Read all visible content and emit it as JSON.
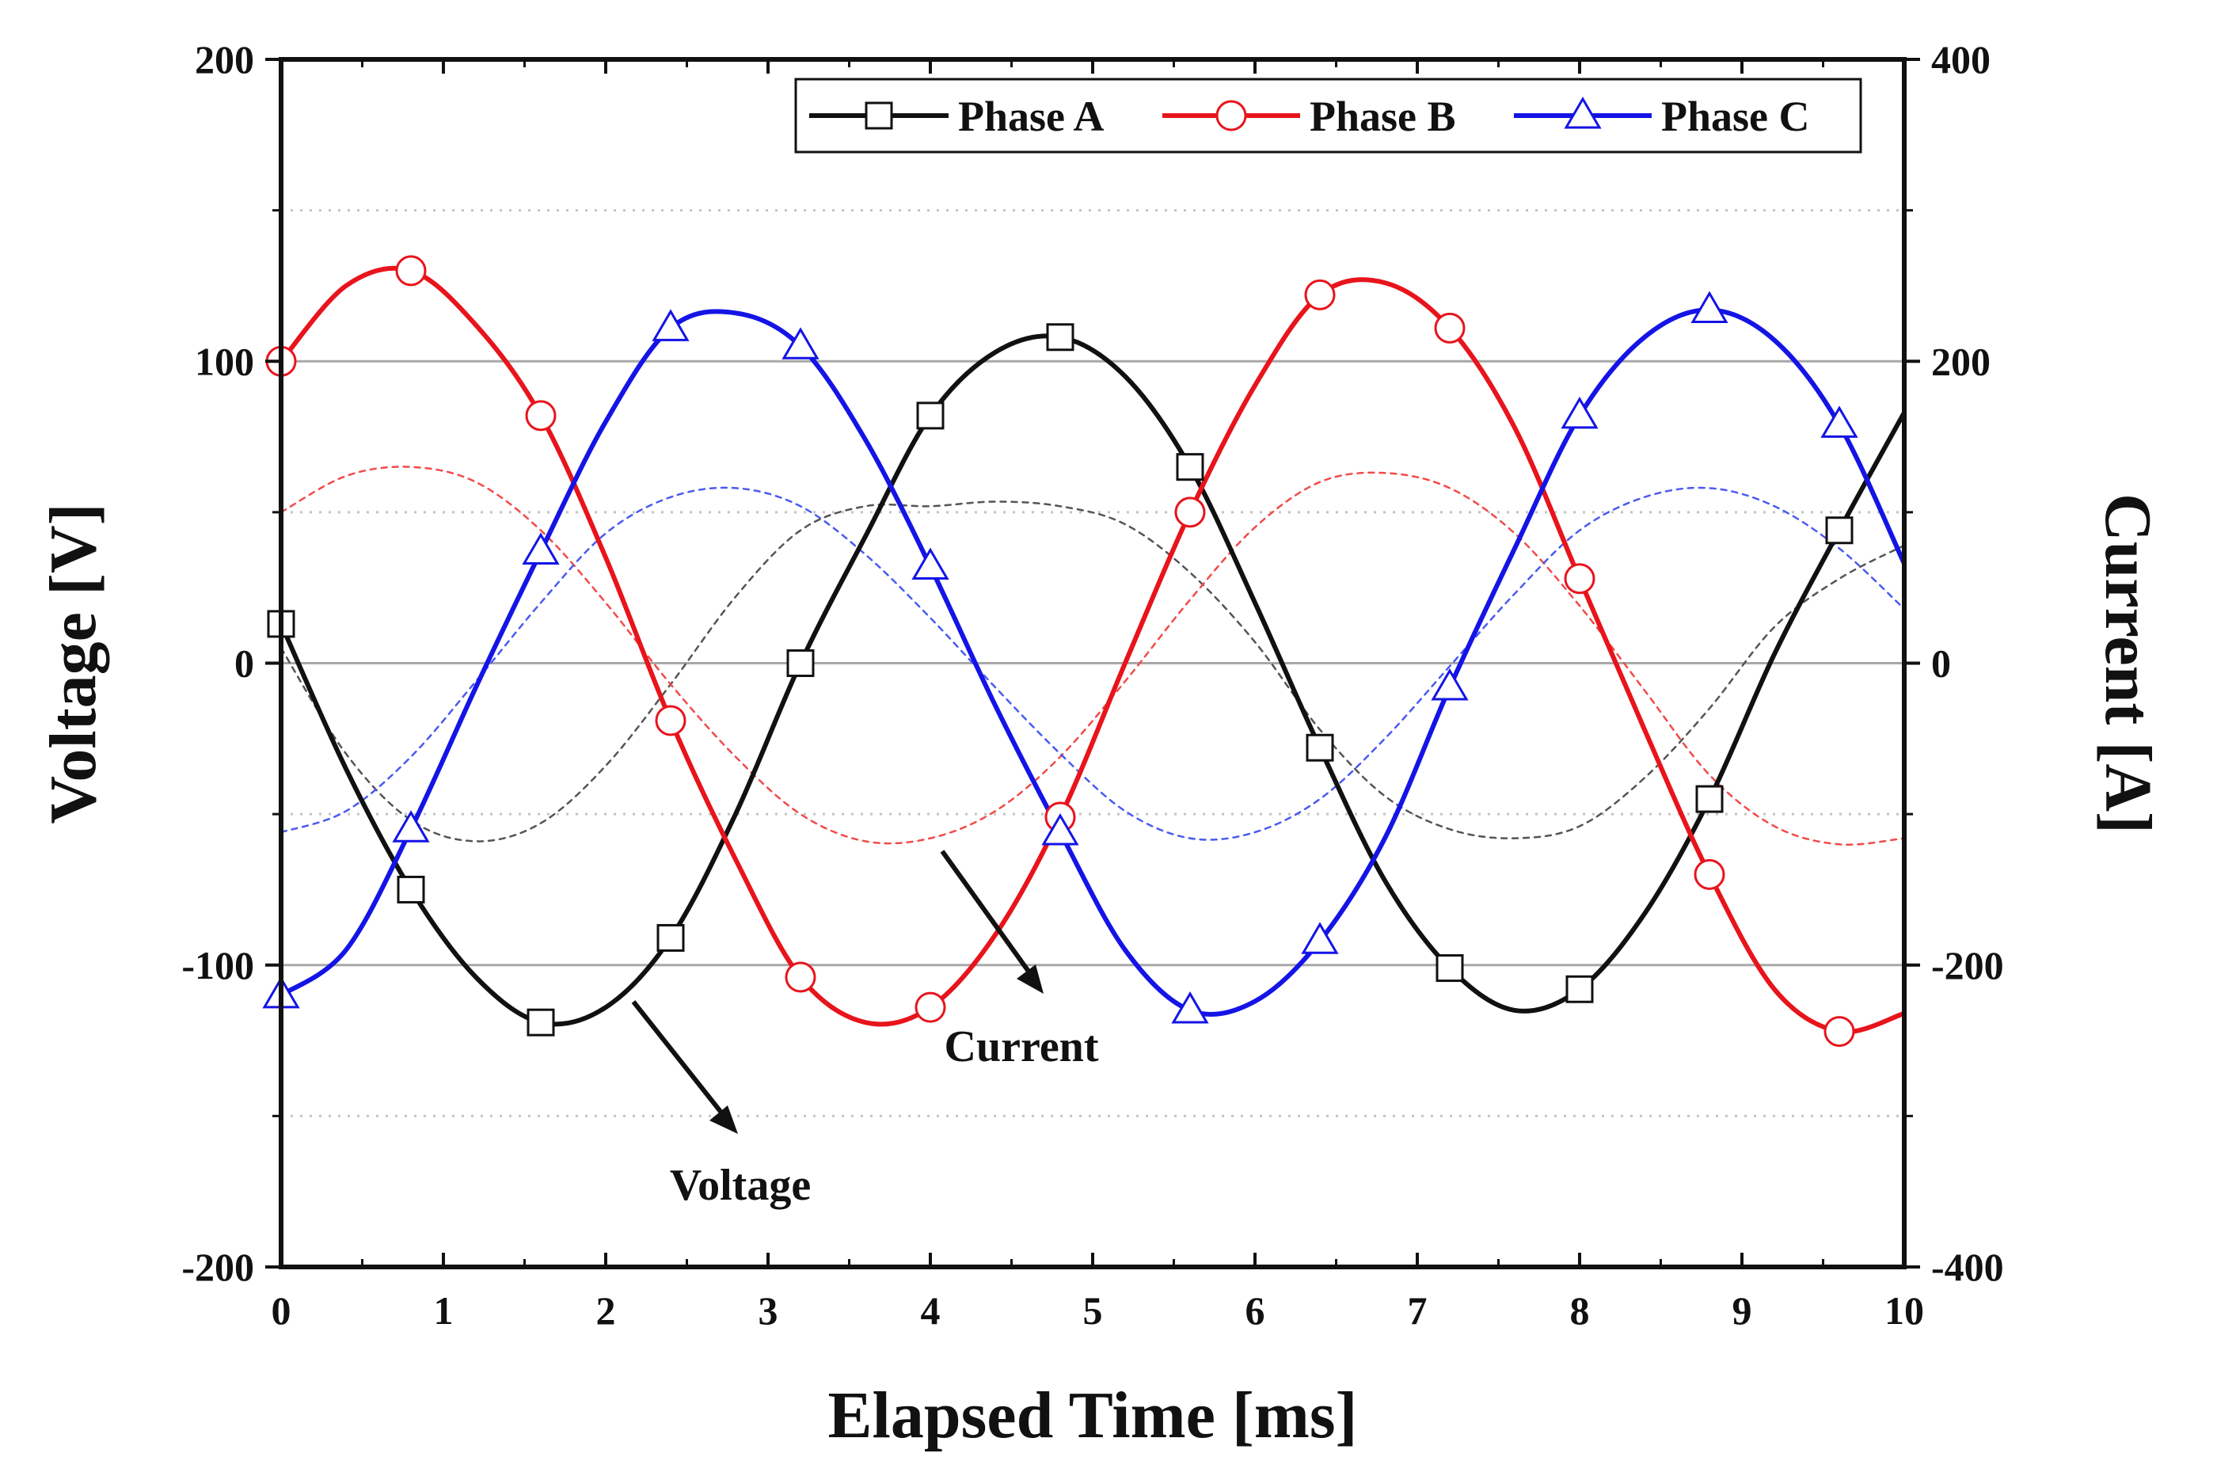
{
  "chart_data": {
    "type": "line",
    "title": "",
    "xlabel": "Elapsed Time [ms]",
    "ylabel_left": "Voltage [V]",
    "ylabel_right": "Current [A]",
    "xlim": [
      0,
      10
    ],
    "ylim_left": [
      -200,
      200
    ],
    "ylim_right": [
      -400,
      400
    ],
    "x_ticks": [
      0,
      1,
      2,
      3,
      4,
      5,
      6,
      7,
      8,
      9,
      10
    ],
    "x_tick_labels": [
      "0",
      "1",
      "2",
      "3",
      "4",
      "5",
      "6",
      "7",
      "8",
      "9",
      "10"
    ],
    "y_left_ticks": [
      -200,
      -100,
      0,
      100,
      200
    ],
    "y_left_tick_labels": [
      "-200",
      "-100",
      "0",
      "100",
      "200"
    ],
    "y_right_ticks": [
      -400,
      -200,
      0,
      200,
      400
    ],
    "y_right_tick_labels": [
      "-400",
      "-200",
      "0",
      "200",
      "400"
    ],
    "grid_left_solid": [
      100,
      0,
      -100
    ],
    "grid_left_dotted": [
      150,
      50,
      -50,
      -150
    ],
    "legend": {
      "position": "top-right",
      "entries": [
        "Phase A",
        "Phase B",
        "Phase C"
      ]
    },
    "annotations": [
      {
        "label": "Current",
        "points_to_series": "current"
      },
      {
        "label": "Voltage",
        "points_to_series": "voltage"
      }
    ],
    "marker_x": [
      0,
      0.8,
      1.6,
      2.4,
      3.2,
      4.0,
      4.8,
      5.6,
      6.4,
      7.2,
      8.0,
      8.8,
      9.6
    ],
    "series": [
      {
        "name": "Phase A",
        "quantity": "voltage",
        "axis": "left",
        "color": "#111111",
        "marker": "square",
        "x": [
          0,
          0.4,
          0.8,
          1.2,
          1.6,
          2.0,
          2.4,
          2.8,
          3.2,
          3.6,
          4.0,
          4.4,
          4.8,
          5.2,
          5.6,
          6.0,
          6.4,
          6.8,
          7.2,
          7.6,
          8.0,
          8.4,
          8.8,
          9.2,
          9.6,
          10.0
        ],
        "y": [
          13,
          -35,
          -75,
          -104,
          -119,
          -114,
          -91,
          -50,
          0,
          42,
          82,
          103,
          108,
          95,
          65,
          20,
          -28,
          -72,
          -101,
          -115,
          -108,
          -83,
          -45,
          3,
          44,
          83
        ]
      },
      {
        "name": "Phase B",
        "quantity": "voltage",
        "axis": "left",
        "color": "#e8141c",
        "marker": "circle",
        "x": [
          0,
          0.4,
          0.8,
          1.2,
          1.6,
          2.0,
          2.4,
          2.8,
          3.2,
          3.6,
          4.0,
          4.4,
          4.8,
          5.2,
          5.6,
          6.0,
          6.4,
          6.8,
          7.2,
          7.6,
          8.0,
          8.4,
          8.8,
          9.2,
          9.6,
          10.0
        ],
        "y": [
          100,
          125,
          130,
          112,
          82,
          35,
          -19,
          -65,
          -104,
          -119,
          -114,
          -90,
          -51,
          0,
          50,
          92,
          122,
          126,
          111,
          78,
          28,
          -22,
          -70,
          -108,
          -122,
          -116
        ]
      },
      {
        "name": "Phase C",
        "quantity": "voltage",
        "axis": "left",
        "color": "#1414e6",
        "marker": "triangle",
        "x": [
          0,
          0.4,
          0.8,
          1.2,
          1.6,
          2.0,
          2.4,
          2.8,
          3.2,
          3.6,
          4.0,
          4.4,
          4.8,
          5.2,
          5.6,
          6.0,
          6.4,
          6.8,
          7.2,
          7.6,
          8.0,
          8.4,
          8.8,
          9.2,
          9.6,
          10.0
        ],
        "y": [
          -110,
          -95,
          -55,
          -8,
          37,
          80,
          111,
          116,
          105,
          74,
          32,
          -14,
          -56,
          -95,
          -115,
          -112,
          -92,
          -58,
          -8,
          38,
          82,
          108,
          117,
          107,
          79,
          33
        ]
      },
      {
        "name": "Phase A",
        "quantity": "current",
        "axis": "right",
        "color": "#555555",
        "marker": "none",
        "x": [
          0,
          0.4,
          0.8,
          1.2,
          1.6,
          2.0,
          2.4,
          2.8,
          3.2,
          3.6,
          4.0,
          4.4,
          4.8,
          5.2,
          5.6,
          6.0,
          6.4,
          6.8,
          7.2,
          7.6,
          8.0,
          8.4,
          8.8,
          9.2,
          9.6,
          10.0
        ],
        "y": [
          10,
          -60,
          -104,
          -118,
          -106,
          -68,
          -14,
          44,
          88,
          104,
          104,
          107,
          104,
          92,
          60,
          14,
          -44,
          -88,
          -110,
          -116,
          -108,
          -76,
          -30,
          24,
          56,
          78
        ]
      },
      {
        "name": "Phase B",
        "quantity": "current",
        "axis": "right",
        "color": "#f24a4a",
        "marker": "none",
        "x": [
          0,
          0.4,
          0.8,
          1.2,
          1.6,
          2.0,
          2.4,
          2.8,
          3.2,
          3.6,
          4.0,
          4.4,
          4.8,
          5.2,
          5.6,
          6.0,
          6.4,
          6.8,
          7.2,
          7.6,
          8.0,
          8.4,
          8.8,
          9.2,
          9.6,
          10.0
        ],
        "y": [
          100,
          124,
          130,
          120,
          88,
          40,
          -14,
          -62,
          -100,
          -118,
          -116,
          -98,
          -62,
          -12,
          42,
          90,
          120,
          126,
          116,
          86,
          38,
          -18,
          -74,
          -108,
          -120,
          -116
        ]
      },
      {
        "name": "Phase C",
        "quantity": "current",
        "axis": "right",
        "color": "#4a5af2",
        "marker": "none",
        "x": [
          0,
          0.4,
          0.8,
          1.2,
          1.6,
          2.0,
          2.4,
          2.8,
          3.2,
          3.6,
          4.0,
          4.4,
          4.8,
          5.2,
          5.6,
          6.0,
          6.4,
          6.8,
          7.2,
          7.6,
          8.0,
          8.4,
          8.8,
          9.2,
          9.6,
          10.0
        ],
        "y": [
          -112,
          -98,
          -62,
          -12,
          40,
          86,
          110,
          116,
          104,
          72,
          30,
          -16,
          -60,
          -98,
          -116,
          -112,
          -90,
          -50,
          -2,
          46,
          88,
          110,
          116,
          104,
          76,
          36
        ]
      }
    ]
  }
}
